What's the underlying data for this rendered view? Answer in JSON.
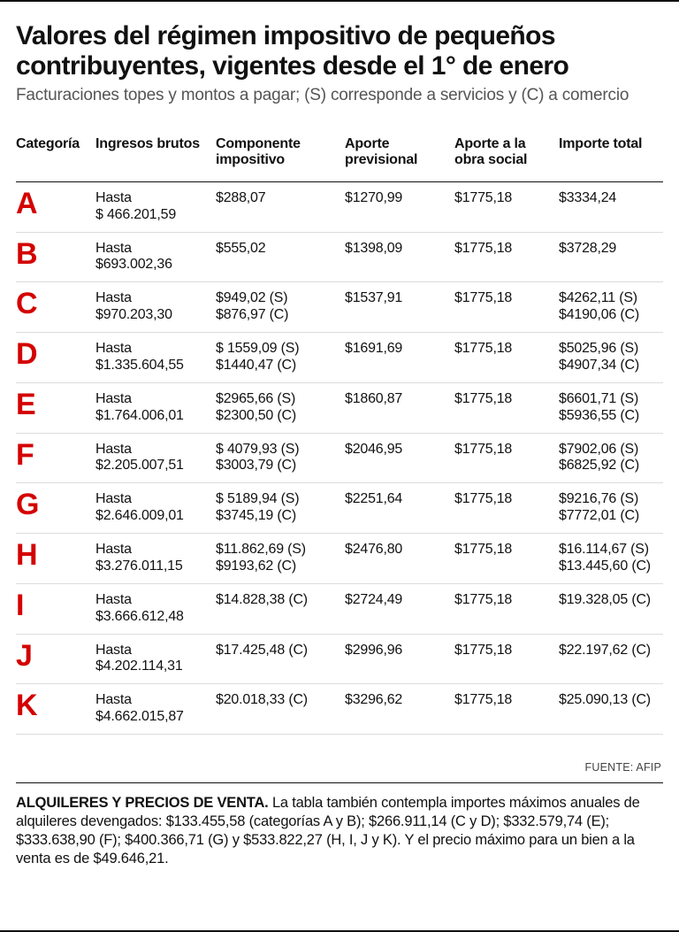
{
  "title": "Valores del régimen impositivo de pequeños contribuyentes, vigentes desde el 1° de enero",
  "subtitle": "Facturaciones topes y montos a pagar; (S) corresponde a servicios y (C) a comercio",
  "columns": [
    "Categoría",
    "Ingresos brutos",
    "Componente impositivo",
    "Aporte previsional",
    "Aporte a la obra social",
    "Importe total"
  ],
  "rows": [
    {
      "cat": "A",
      "ing1": "Hasta",
      "ing2": "$ 466.201,59",
      "comp1": "$288,07",
      "comp2": "",
      "prev": "$1270,99",
      "obra": "$1775,18",
      "tot1": "$3334,24",
      "tot2": ""
    },
    {
      "cat": "B",
      "ing1": "Hasta",
      "ing2": "$693.002,36",
      "comp1": "$555,02",
      "comp2": "",
      "prev": "$1398,09",
      "obra": "$1775,18",
      "tot1": "$3728,29",
      "tot2": ""
    },
    {
      "cat": "C",
      "ing1": "Hasta",
      "ing2": "$970.203,30",
      "comp1": "$949,02 (S)",
      "comp2": "$876,97 (C)",
      "prev": "$1537,91",
      "obra": "$1775,18",
      "tot1": "$4262,11 (S)",
      "tot2": "$4190,06 (C)"
    },
    {
      "cat": "D",
      "ing1": "Hasta",
      "ing2": "$1.335.604,55",
      "comp1": "$ 1559,09 (S)",
      "comp2": "$1440,47 (C)",
      "prev": "$1691,69",
      "obra": "$1775,18",
      "tot1": "$5025,96 (S)",
      "tot2": "$4907,34 (C)"
    },
    {
      "cat": "E",
      "ing1": "Hasta",
      "ing2": "$1.764.006,01",
      "comp1": "$2965,66 (S)",
      "comp2": "$2300,50 (C)",
      "prev": "$1860,87",
      "obra": "$1775,18",
      "tot1": "$6601,71 (S)",
      "tot2": "$5936,55 (C)"
    },
    {
      "cat": "F",
      "ing1": "Hasta",
      "ing2": "$2.205.007,51",
      "comp1": "$ 4079,93 (S)",
      "comp2": "$3003,79 (C)",
      "prev": "$2046,95",
      "obra": "$1775,18",
      "tot1": "$7902,06 (S)",
      "tot2": "$6825,92 (C)"
    },
    {
      "cat": "G",
      "ing1": "Hasta",
      "ing2": "$2.646.009,01",
      "comp1": "$ 5189,94 (S)",
      "comp2": "$3745,19 (C)",
      "prev": "$2251,64",
      "obra": "$1775,18",
      "tot1": "$9216,76 (S)",
      "tot2": "$7772,01 (C)"
    },
    {
      "cat": "H",
      "ing1": "Hasta",
      "ing2": "$3.276.011,15",
      "comp1": "$11.862,69 (S)",
      "comp2": "$9193,62 (C)",
      "prev": "$2476,80",
      "obra": "$1775,18",
      "tot1": "$16.114,67 (S)",
      "tot2": "$13.445,60 (C)"
    },
    {
      "cat": "I",
      "ing1": "Hasta",
      "ing2": "$3.666.612,48",
      "comp1": "$14.828,38 (C)",
      "comp2": "",
      "prev": "$2724,49",
      "obra": "$1775,18",
      "tot1": "$19.328,05 (C)",
      "tot2": ""
    },
    {
      "cat": "J",
      "ing1": "Hasta",
      "ing2": "$4.202.114,31",
      "comp1": "$17.425,48 (C)",
      "comp2": "",
      "prev": "$2996,96",
      "obra": "$1775,18",
      "tot1": "$22.197,62 (C)",
      "tot2": ""
    },
    {
      "cat": "K",
      "ing1": "Hasta",
      "ing2": "$4.662.015,87",
      "comp1": "$20.018,33 (C)",
      "comp2": "",
      "prev": "$3296,62",
      "obra": "$1775,18",
      "tot1": "$25.090,13 (C)",
      "tot2": ""
    }
  ],
  "source": "FUENTE: AFIP",
  "foot_bold": "ALQUILERES Y PRECIOS DE VENTA.",
  "foot_text": " La tabla también contempla importes máximos anuales de alquileres devengados: $133.455,58 (categorías A y B); $266.911,14 (C y D); $332.579,74 (E); $333.638,90 (F); $400.366,71 (G) y $533.822,27 (H, I, J y K). Y el precio máximo para un bien a la venta es de $49.646,21."
}
